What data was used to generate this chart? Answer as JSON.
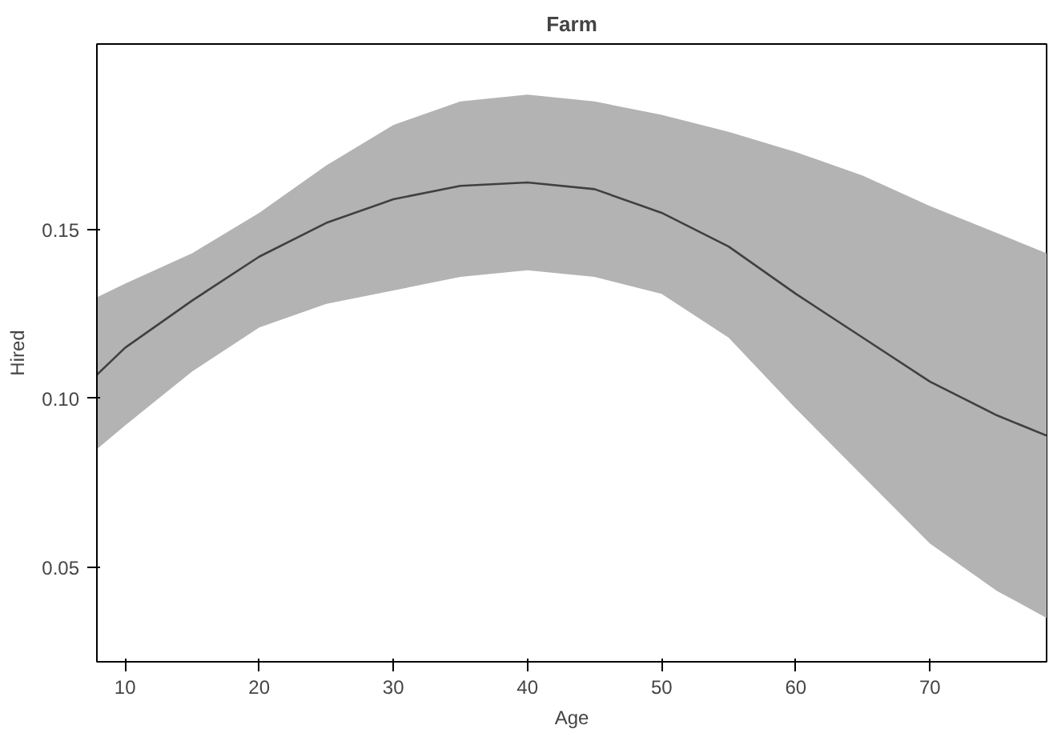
{
  "chart_data": {
    "type": "line",
    "title": "Farm",
    "xlabel": "Age",
    "ylabel": "Hired",
    "x": [
      7.9,
      10,
      15,
      20,
      25,
      30,
      35,
      40,
      45,
      50,
      55,
      60,
      65,
      70,
      75,
      78.7
    ],
    "series": [
      {
        "color": "#404040",
        "values": [
          0.107,
          0.115,
          0.129,
          0.142,
          0.152,
          0.159,
          0.163,
          0.164,
          0.162,
          0.155,
          0.145,
          0.131,
          0.118,
          0.105,
          0.095,
          0.089
        ],
        "lower": [
          0.085,
          0.092,
          0.108,
          0.121,
          0.128,
          0.132,
          0.136,
          0.138,
          0.136,
          0.131,
          0.118,
          0.097,
          0.077,
          0.057,
          0.043,
          0.035
        ],
        "upper": [
          0.13,
          0.134,
          0.143,
          0.155,
          0.169,
          0.181,
          0.188,
          0.19,
          0.188,
          0.184,
          0.179,
          0.173,
          0.166,
          0.157,
          0.149,
          0.143
        ]
      }
    ],
    "xlim": [
      7.9,
      78.7
    ],
    "ylim": [
      0.022,
      0.205
    ],
    "xticks": [
      10,
      20,
      30,
      40,
      50,
      60,
      70
    ],
    "yticks": [
      {
        "value": 0.05,
        "label": "0.05"
      },
      {
        "value": 0.1,
        "label": "0.10"
      },
      {
        "value": 0.15,
        "label": "0.15"
      }
    ],
    "grid": false,
    "marker": "none",
    "line_style": "solid"
  }
}
